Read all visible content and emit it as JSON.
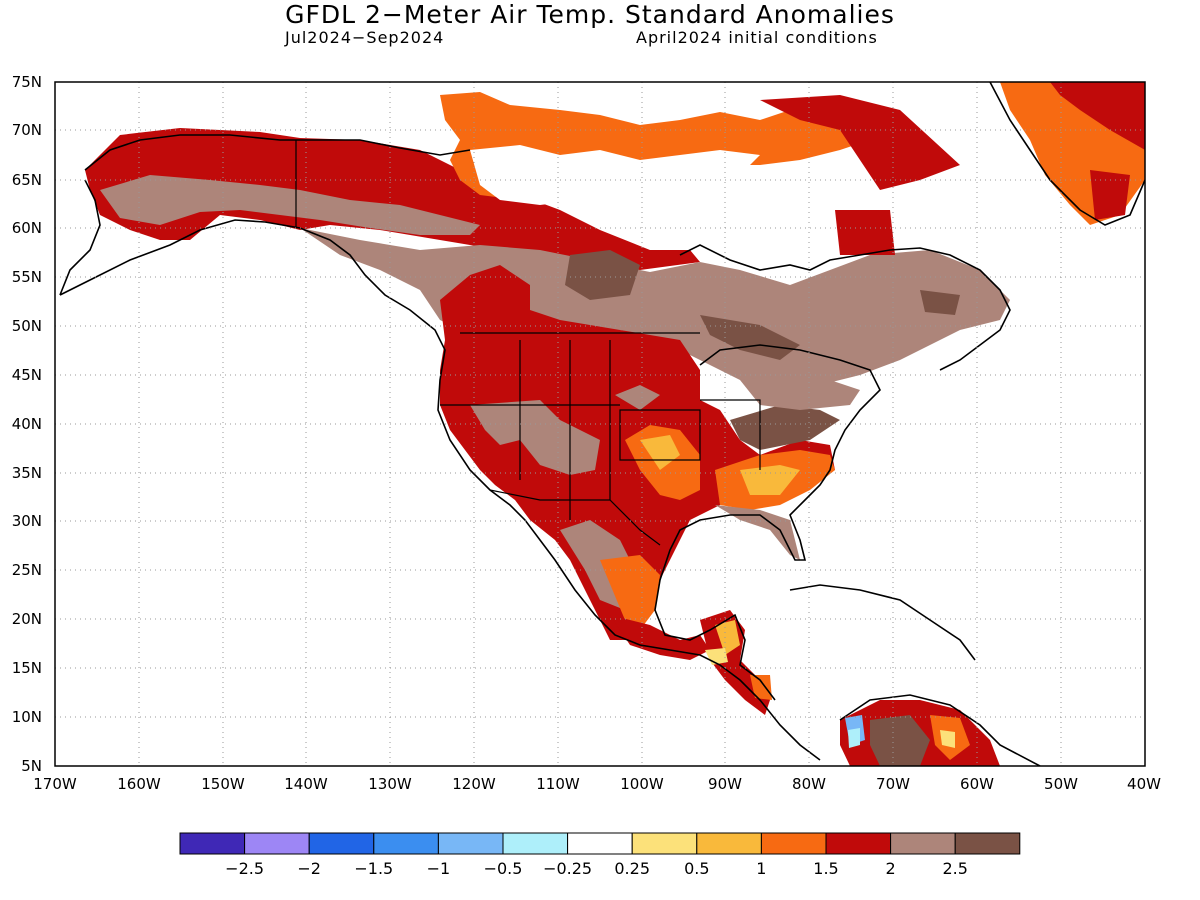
{
  "title": "GFDL 2−Meter Air Temp. Standard Anomalies",
  "period": "Jul2024−Sep2024",
  "initial_conditions": "April2024 initial conditions",
  "map": {
    "lat_labels": [
      "75N",
      "70N",
      "65N",
      "60N",
      "55N",
      "50N",
      "45N",
      "40N",
      "35N",
      "30N",
      "25N",
      "20N",
      "15N",
      "10N",
      "5N"
    ],
    "lon_labels": [
      "170W",
      "160W",
      "150W",
      "140W",
      "130W",
      "120W",
      "110W",
      "100W",
      "90W",
      "80W",
      "70W",
      "60W",
      "50W",
      "40W"
    ],
    "lat_range": [
      5,
      75
    ],
    "lon_range": [
      -170,
      -40
    ],
    "grid": "dotted"
  },
  "colorbar": {
    "colors": [
      "#3f28b6",
      "#9d86f5",
      "#2165e6",
      "#3b8ef0",
      "#78b7f6",
      "#aeeffa",
      "#ffffff",
      "#fce17a",
      "#f9b93b",
      "#f76a12",
      "#c00a0a",
      "#ad857a",
      "#7a5245"
    ],
    "labels": [
      "−2.5",
      "−2",
      "−1.5",
      "−1",
      "−0.5",
      "−0.25",
      "0.25",
      "0.5",
      "1",
      "1.5",
      "2",
      "2.5"
    ]
  },
  "palette": {
    "brown": "#ad857a",
    "dark_brown": "#7a5245",
    "red": "#c00a0a",
    "orange": "#f76a12",
    "light_orange": "#f9b93b",
    "yellow": "#fce17a",
    "light_blue": "#aeeffa",
    "blue": "#78b7f6"
  }
}
